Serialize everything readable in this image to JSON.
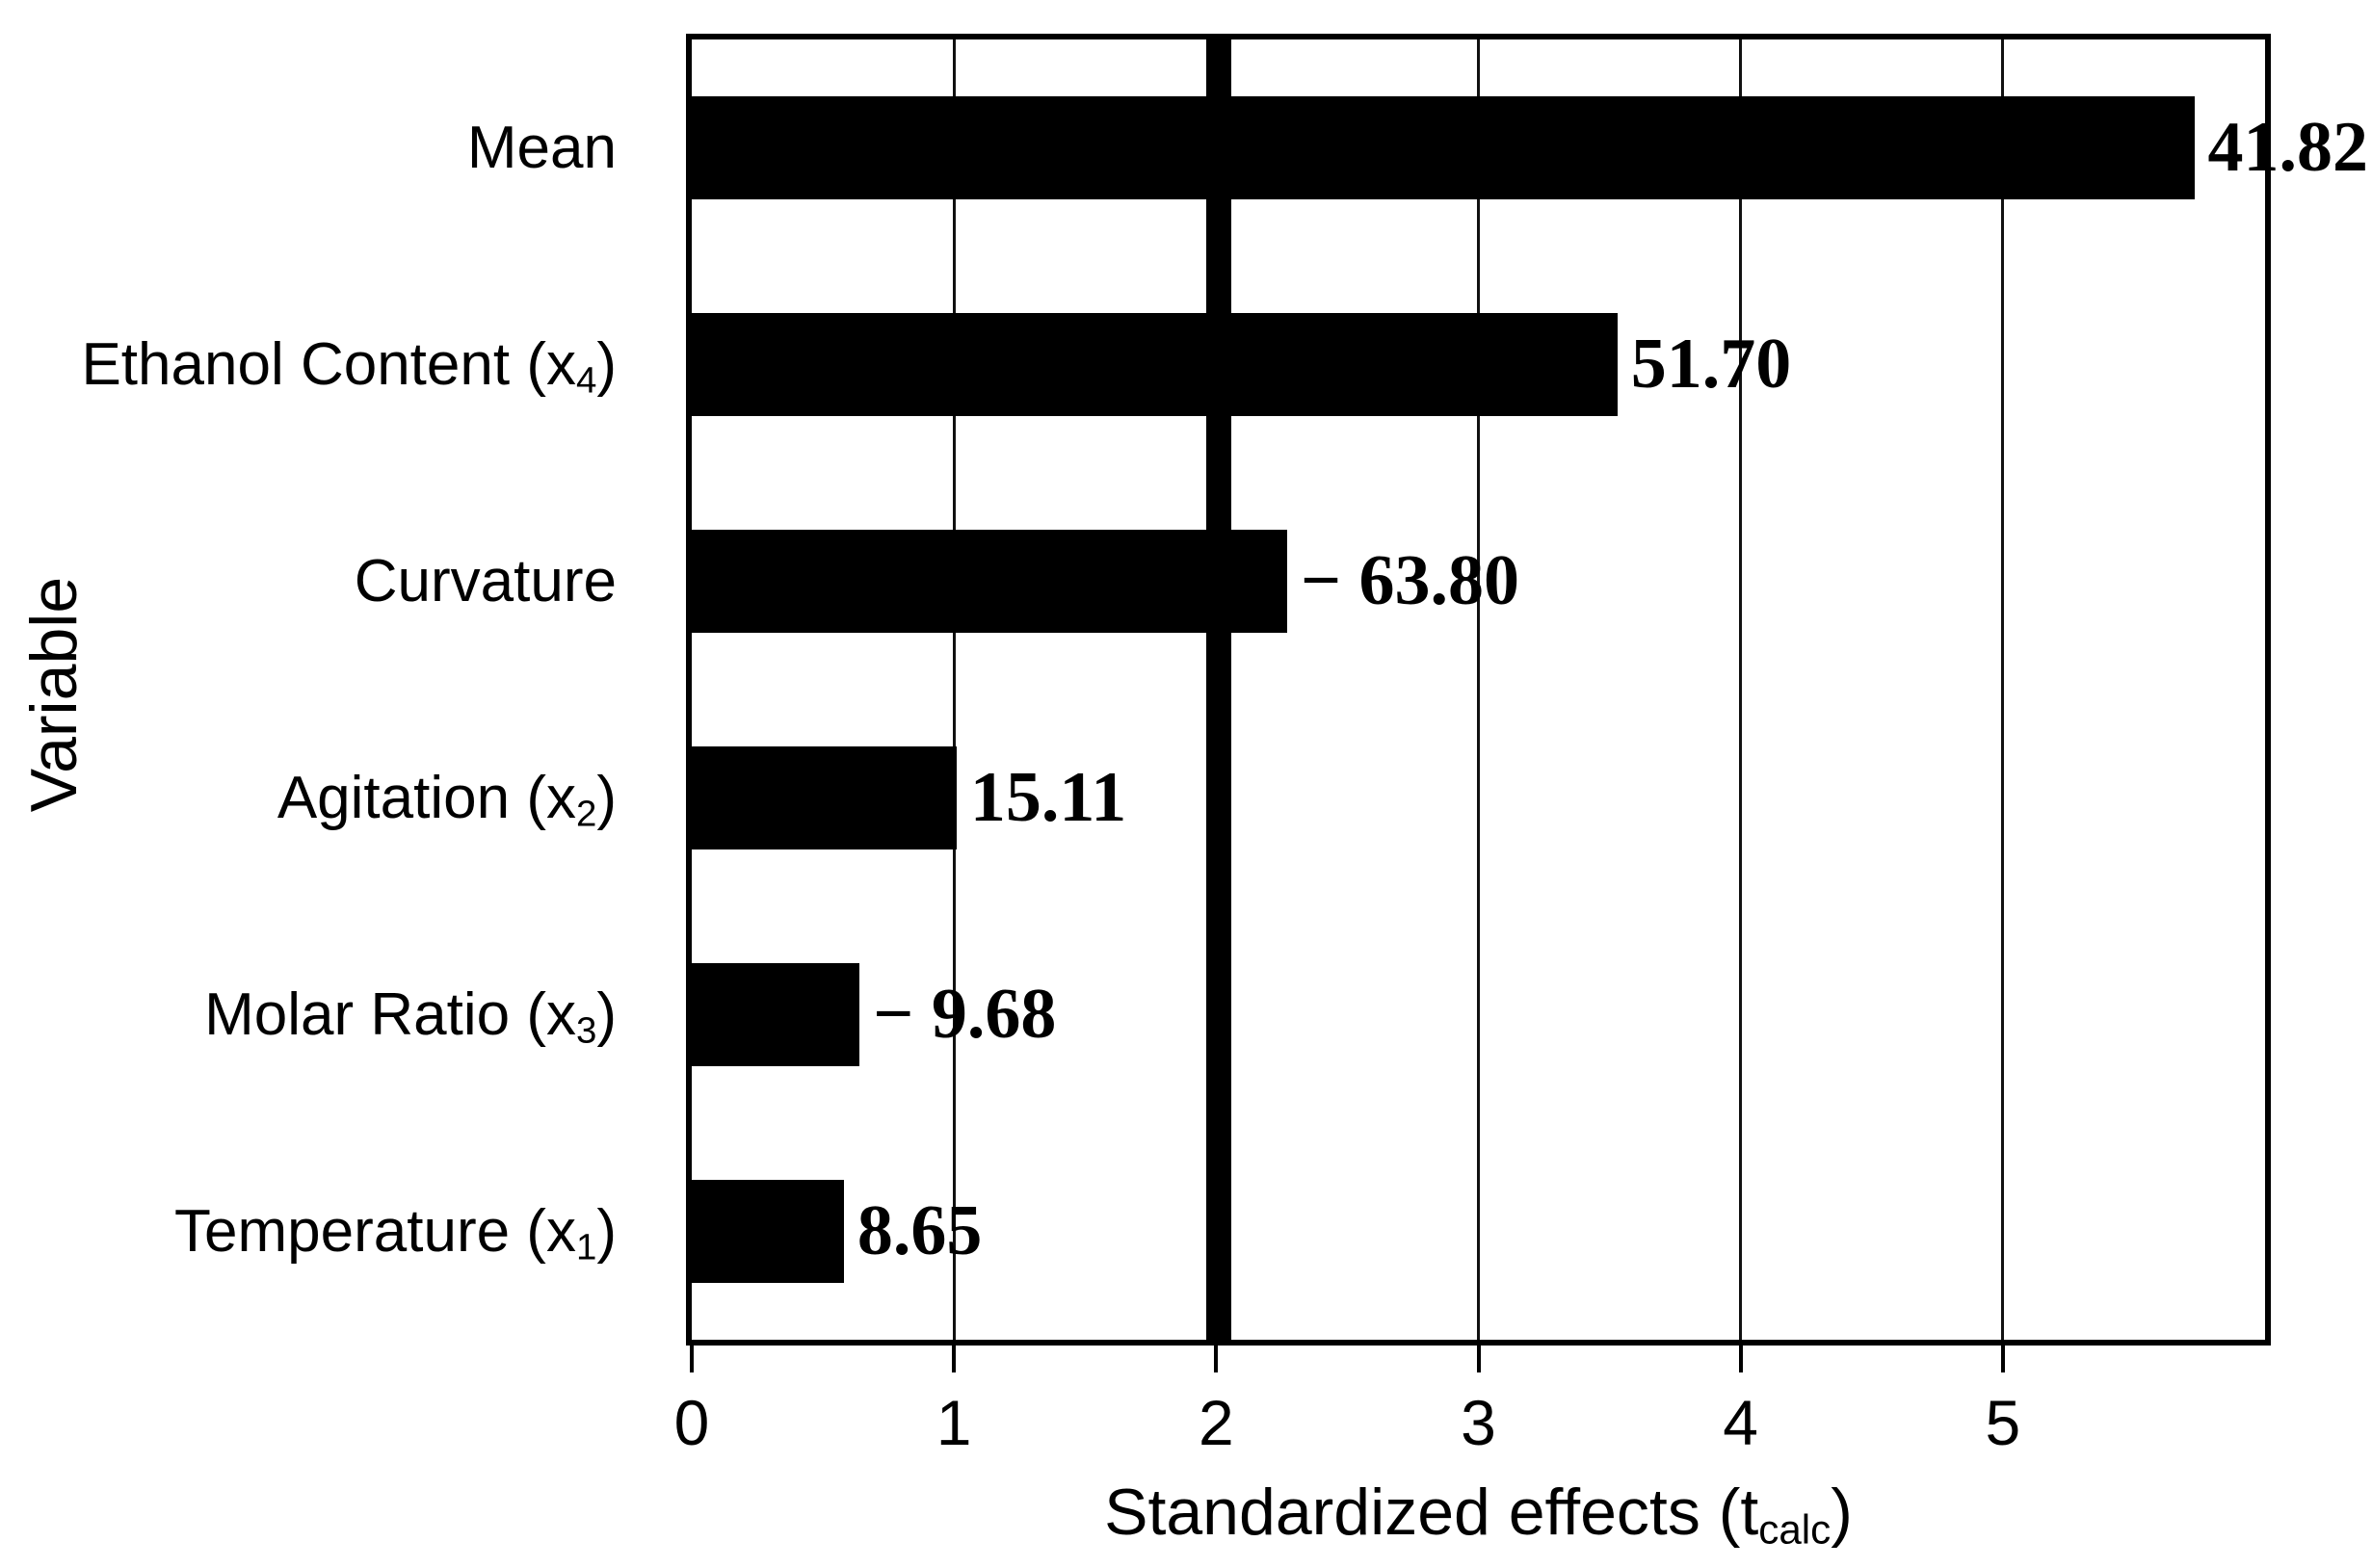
{
  "figure": {
    "background_color": "#ffffff",
    "ink_color": "#000000"
  },
  "chart_data": {
    "type": "bar",
    "orientation": "horizontal",
    "title": "",
    "ylabel": "Variable",
    "xlabel_pre": "Standardized effects (t",
    "xlabel_sub": "calc",
    "xlabel_post": ")",
    "xlim": [
      0,
      6
    ],
    "xticks": [
      "0",
      "1",
      "2",
      "3",
      "4",
      "5"
    ],
    "grid": "thin vertical gridlines at each labeled tick, full plot height",
    "legend": "none",
    "bar_color": "#000000",
    "reference_line_x": 2.01,
    "categories": [
      {
        "label_pre": "Mean",
        "label_sub": "",
        "label_post": "",
        "value_label": "41.82",
        "t_value": 41.82,
        "bar_length_axis_units": 5.73
      },
      {
        "label_pre": "Ethanol Content (x",
        "label_sub": "4",
        "label_post": ")",
        "value_label": "51.70",
        "t_value": 51.7,
        "bar_length_axis_units": 3.53
      },
      {
        "label_pre": "Curvature",
        "label_sub": "",
        "label_post": "",
        "value_label": "− 63.80",
        "t_value": -63.8,
        "bar_length_axis_units": 2.27
      },
      {
        "label_pre": "Agitation (x",
        "label_sub": "2",
        "label_post": ")",
        "value_label": "15.11",
        "t_value": 15.11,
        "bar_length_axis_units": 1.01
      },
      {
        "label_pre": "Molar Ratio (x",
        "label_sub": "3",
        "label_post": ")",
        "value_label": "− 9.68",
        "t_value": -9.68,
        "bar_length_axis_units": 0.64
      },
      {
        "label_pre": "Temperature (x",
        "label_sub": "1",
        "label_post": ")",
        "value_label": "8.65",
        "t_value": 8.65,
        "bar_length_axis_units": 0.58
      }
    ]
  }
}
